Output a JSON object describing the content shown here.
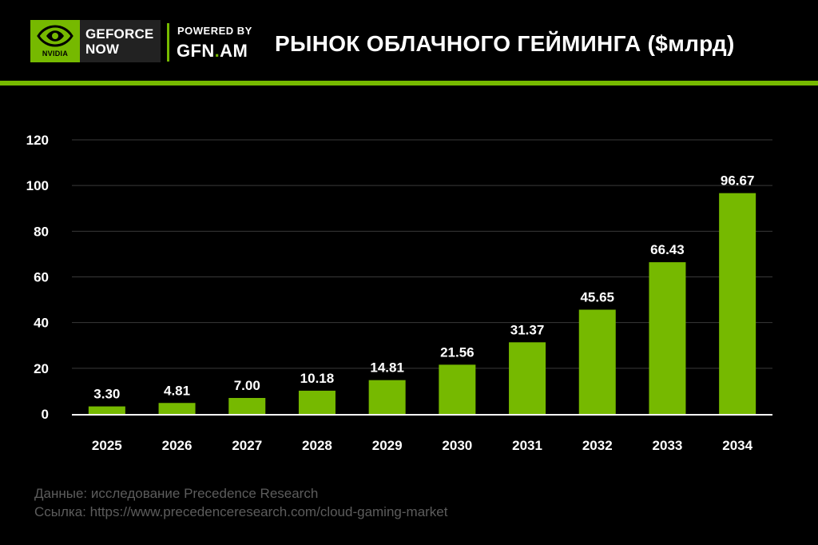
{
  "header": {
    "logo_word": "NVIDIA",
    "product_line1": "GEFORCE",
    "product_line2": "NOW",
    "powered_by": "POWERED BY",
    "site_name": "GFN",
    "site_dot": ".",
    "site_tld": "AM",
    "title": "РЫНОК ОБЛАЧНОГО ГЕЙМИНГА ($млрд)"
  },
  "colors": {
    "accent": "#76b900",
    "background": "#000000",
    "text": "#ffffff",
    "footer_text": "#5c5c5c"
  },
  "icons": {
    "logo": "nvidia-eye-icon"
  },
  "chart_data": {
    "type": "bar",
    "categories": [
      "2025",
      "2026",
      "2027",
      "2028",
      "2029",
      "2030",
      "2031",
      "2032",
      "2033",
      "2034"
    ],
    "values": [
      3.3,
      4.81,
      7.0,
      10.18,
      14.81,
      21.56,
      31.37,
      45.65,
      66.43,
      96.67
    ],
    "data_labels": [
      "3.30",
      "4.81",
      "7.00",
      "10.18",
      "14.81",
      "21.56",
      "31.37",
      "45.65",
      "66.43",
      "96.67"
    ],
    "yticks": [
      0,
      20,
      40,
      60,
      80,
      100,
      120
    ],
    "ylim": [
      0,
      120
    ],
    "grid": true,
    "legend": "none",
    "bar_color": "#76b900"
  },
  "footer": {
    "source": "Данные: исследование Precedence Research",
    "link": "Ссылка: https://www.precedenceresearch.com/cloud-gaming-market"
  }
}
